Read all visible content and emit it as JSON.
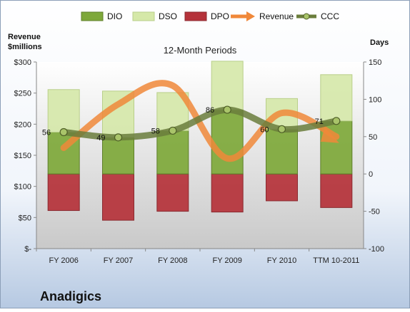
{
  "company": "Anadigics",
  "chart_data": {
    "type": "bar",
    "title": "12-Month Periods",
    "categories": [
      "FY 2006",
      "FY 2007",
      "FY 2008",
      "FY 2009",
      "FY 2010",
      "TTM 10-2011"
    ],
    "left_axis": {
      "label_line1": "Revenue",
      "label_line2": "$millions",
      "ylim": [
        0,
        300
      ],
      "ticks": [
        0,
        50,
        100,
        150,
        200,
        250,
        300
      ],
      "tick_labels": [
        "$-",
        "$50",
        "$100",
        "$150",
        "$200",
        "$250",
        "$300"
      ]
    },
    "right_axis": {
      "label": "Days",
      "ylim": [
        -100,
        150
      ],
      "ticks": [
        -100,
        -50,
        0,
        50,
        100,
        150
      ],
      "tick_labels": [
        "-100",
        "-50",
        "0",
        "50",
        "100",
        "150"
      ]
    },
    "series": [
      {
        "name": "DIO",
        "kind": "stacked-bar",
        "axis": "right",
        "values": [
          56,
          49,
          58,
          86,
          60,
          71
        ],
        "color": "#7ea83a"
      },
      {
        "name": "DSO",
        "kind": "stacked-bar",
        "axis": "right",
        "values": [
          57,
          62,
          51,
          65,
          41,
          62
        ],
        "color": "#d5e8a8"
      },
      {
        "name": "DPO",
        "kind": "negative-bar",
        "axis": "right",
        "values": [
          -49,
          -62,
          -50,
          -51,
          -36,
          -45
        ],
        "color": "#b5323a"
      },
      {
        "name": "Revenue",
        "kind": "line",
        "axis": "left",
        "values": [
          162,
          232,
          262,
          145,
          218,
          180
        ],
        "color": "#f0883a"
      },
      {
        "name": "CCC",
        "kind": "line",
        "axis": "right",
        "values": [
          56,
          49,
          58,
          86,
          60,
          71
        ],
        "color": "#6a7d3c"
      }
    ],
    "data_labels": [
      "56",
      "49",
      "58",
      "86",
      "60",
      "71"
    ],
    "legend_position": "top",
    "grid": false
  }
}
